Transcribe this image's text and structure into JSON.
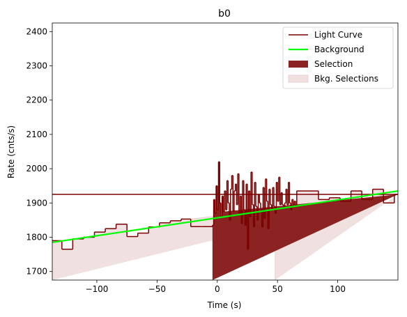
{
  "chart_data": {
    "type": "line",
    "title": "b0",
    "xlabel": "Time (s)",
    "ylabel": "Rate (cnts/s)",
    "xlim": [
      -137,
      150
    ],
    "ylim": [
      1675,
      2425
    ],
    "xticks": [
      -100,
      -50,
      0,
      50,
      100
    ],
    "yticks": [
      1700,
      1800,
      1900,
      2000,
      2100,
      2200,
      2300,
      2400
    ],
    "grid": false,
    "legend_position": "top-right",
    "colors": {
      "light_curve": "#7a0000",
      "background": "#00ff00",
      "selection": "#8b2323",
      "bkg_selection": "#f0e0e0"
    },
    "legend": [
      {
        "label": "Light Curve",
        "key": "light_curve",
        "kind": "line"
      },
      {
        "label": "Background",
        "key": "background",
        "kind": "thickline"
      },
      {
        "label": "Selection",
        "key": "selection",
        "kind": "patch"
      },
      {
        "label": "Bkg. Selections",
        "key": "bkg_selection",
        "kind": "patch"
      }
    ],
    "background_line": {
      "x": [
        -137,
        150
      ],
      "y": [
        1785,
        1935
      ]
    },
    "bkg_selections": [
      [
        -137,
        -22
      ],
      [
        48,
        150
      ]
    ],
    "selection": [
      -4,
      6
    ],
    "light_curve": {
      "edges": [
        -137,
        -129,
        -120,
        -111,
        -102,
        -93,
        -84,
        -75,
        -66,
        -57,
        -48,
        -39,
        -30,
        -22,
        -13,
        -4,
        -3,
        -2,
        -1,
        0,
        1,
        2,
        3,
        4,
        5,
        6,
        7,
        8,
        9,
        10,
        11,
        12,
        13,
        14,
        15,
        16,
        17,
        18,
        19,
        20,
        21,
        22,
        23,
        24,
        25,
        26,
        27,
        28,
        29,
        30,
        31,
        32,
        33,
        34,
        35,
        36,
        37,
        38,
        39,
        40,
        41,
        42,
        43,
        44,
        45,
        46,
        47,
        48,
        49,
        50,
        51,
        52,
        53,
        54,
        55,
        56,
        57,
        58,
        59,
        60,
        61,
        62,
        63,
        64,
        65,
        66,
        75,
        84,
        93,
        102,
        111,
        120,
        129,
        138,
        147,
        150
      ],
      "y": [
        1790,
        1765,
        1795,
        1800,
        1815,
        1825,
        1838,
        1802,
        1812,
        1830,
        1842,
        1848,
        1853,
        1831,
        1831,
        1835,
        1910,
        1870,
        1950,
        1880,
        2020,
        1900,
        1860,
        1920,
        1875,
        1935,
        1880,
        1965,
        1900,
        1850,
        1940,
        1980,
        1875,
        1935,
        1955,
        1895,
        1985,
        1870,
        1920,
        1840,
        1965,
        1880,
        1835,
        1955,
        1765,
        1935,
        1860,
        1990,
        1895,
        1830,
        1960,
        1890,
        1850,
        1925,
        1900,
        1880,
        1830,
        1945,
        1855,
        1970,
        1905,
        1825,
        1940,
        1895,
        1880,
        1945,
        1890,
        1870,
        1960,
        1905,
        1975,
        1895,
        1930,
        1895,
        1890,
        1900,
        1940,
        1895,
        1960,
        1900,
        1880,
        1910,
        1895,
        1905,
        1890,
        1935,
        1935,
        1910,
        1915,
        1905,
        1935,
        1910,
        1940,
        1900,
        1925,
        1925
      ]
    }
  }
}
